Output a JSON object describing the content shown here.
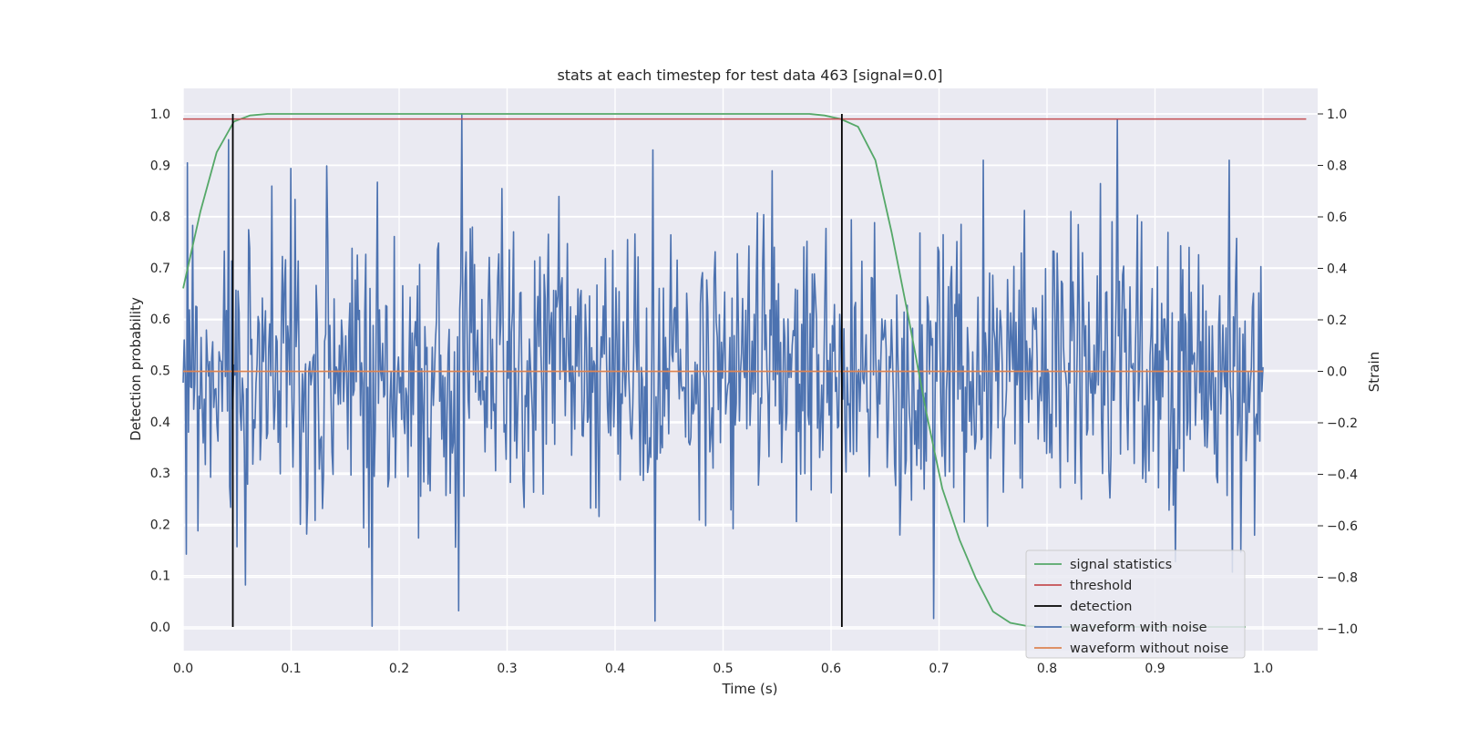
{
  "chart_data": {
    "type": "line",
    "title": "stats at each timestep for test data 463 [signal=0.0]",
    "xlabel": "Time (s)",
    "ylabel": "Detection probability",
    "ylabel_right": "Strain",
    "xlim": [
      0.0,
      1.05
    ],
    "ylim": [
      -0.05,
      1.05
    ],
    "ylim_right": [
      -1.1,
      1.1
    ],
    "x_ticks": [
      0.0,
      0.1,
      0.2,
      0.3,
      0.4,
      0.5,
      0.6,
      0.7,
      0.8,
      0.9,
      1.0
    ],
    "x_tick_labels": [
      "0.0",
      "0.1",
      "0.2",
      "0.3",
      "0.4",
      "0.5",
      "0.6",
      "0.7",
      "0.8",
      "0.9",
      "1.0"
    ],
    "y_ticks": [
      0.0,
      0.1,
      0.2,
      0.3,
      0.4,
      0.5,
      0.6,
      0.7,
      0.8,
      0.9,
      1.0
    ],
    "y_tick_labels": [
      "0.0",
      "0.1",
      "0.2",
      "0.3",
      "0.4",
      "0.5",
      "0.6",
      "0.7",
      "0.8",
      "0.9",
      "1.0"
    ],
    "y_right_ticks": [
      -1.0,
      -0.8,
      -0.6,
      -0.4,
      -0.2,
      0.0,
      0.2,
      0.4,
      0.6,
      0.8,
      1.0
    ],
    "y_right_tick_labels": [
      "−1.0",
      "−0.8",
      "−0.6",
      "−0.4",
      "−0.2",
      "0.0",
      "0.2",
      "0.4",
      "0.6",
      "0.8",
      "1.0"
    ],
    "grid": true,
    "legend_position": "lower right",
    "series": [
      {
        "name": "signal statistics",
        "color": "#55a868",
        "axis": "left",
        "x": [
          0.0,
          0.016,
          0.031,
          0.047,
          0.062,
          0.078,
          0.094,
          0.2,
          0.3,
          0.4,
          0.5,
          0.58,
          0.594,
          0.609,
          0.625,
          0.641,
          0.656,
          0.672,
          0.688,
          0.703,
          0.719,
          0.734,
          0.75,
          0.766,
          0.781,
          0.797,
          0.813,
          0.828,
          0.844,
          0.86,
          0.875,
          0.891,
          0.906,
          0.922,
          0.938,
          0.953,
          0.969,
          0.984
        ],
        "y": [
          0.66,
          0.81,
          0.925,
          0.985,
          0.997,
          1.0,
          1.0,
          1.0,
          1.0,
          1.0,
          1.0,
          1.0,
          0.997,
          0.99,
          0.975,
          0.91,
          0.77,
          0.6,
          0.42,
          0.27,
          0.17,
          0.095,
          0.03,
          0.008,
          0.002,
          0.0,
          0.0,
          0.0,
          0.0,
          0.0,
          0.0,
          0.0,
          0.0,
          0.0,
          0.0,
          0.0,
          0.0,
          0.0
        ]
      },
      {
        "name": "threshold",
        "color": "#c44e52",
        "axis": "left",
        "x": [
          0.0,
          1.04
        ],
        "y": [
          0.99,
          0.99
        ]
      },
      {
        "name": "waveform with noise",
        "color": "#4c72b0",
        "axis": "right",
        "noise_amplitude_std": 0.28,
        "samples": 1024,
        "x_range": [
          0.0,
          1.0
        ],
        "spikes": [
          {
            "x": 0.004,
            "y": 0.81
          },
          {
            "x": 0.003,
            "y": -0.71
          },
          {
            "x": 0.042,
            "y": 0.9
          },
          {
            "x": 0.058,
            "y": -0.83
          },
          {
            "x": 0.175,
            "y": -0.99
          },
          {
            "x": 0.255,
            "y": -0.93
          },
          {
            "x": 0.258,
            "y": 1.0
          },
          {
            "x": 0.295,
            "y": 0.71
          },
          {
            "x": 0.437,
            "y": -0.97
          },
          {
            "x": 0.435,
            "y": 0.86
          },
          {
            "x": 0.695,
            "y": -0.96
          },
          {
            "x": 0.865,
            "y": 0.98
          },
          {
            "x": 0.972,
            "y": -0.78
          }
        ]
      },
      {
        "name": "waveform without noise",
        "color": "#dd8452",
        "axis": "right",
        "x": [
          0.0,
          1.0
        ],
        "y": [
          0.0,
          0.0
        ]
      }
    ],
    "detections": {
      "name": "detection",
      "color": "#000000",
      "x": [
        0.046,
        0.61
      ],
      "y_range": [
        0.0,
        1.0
      ]
    }
  }
}
